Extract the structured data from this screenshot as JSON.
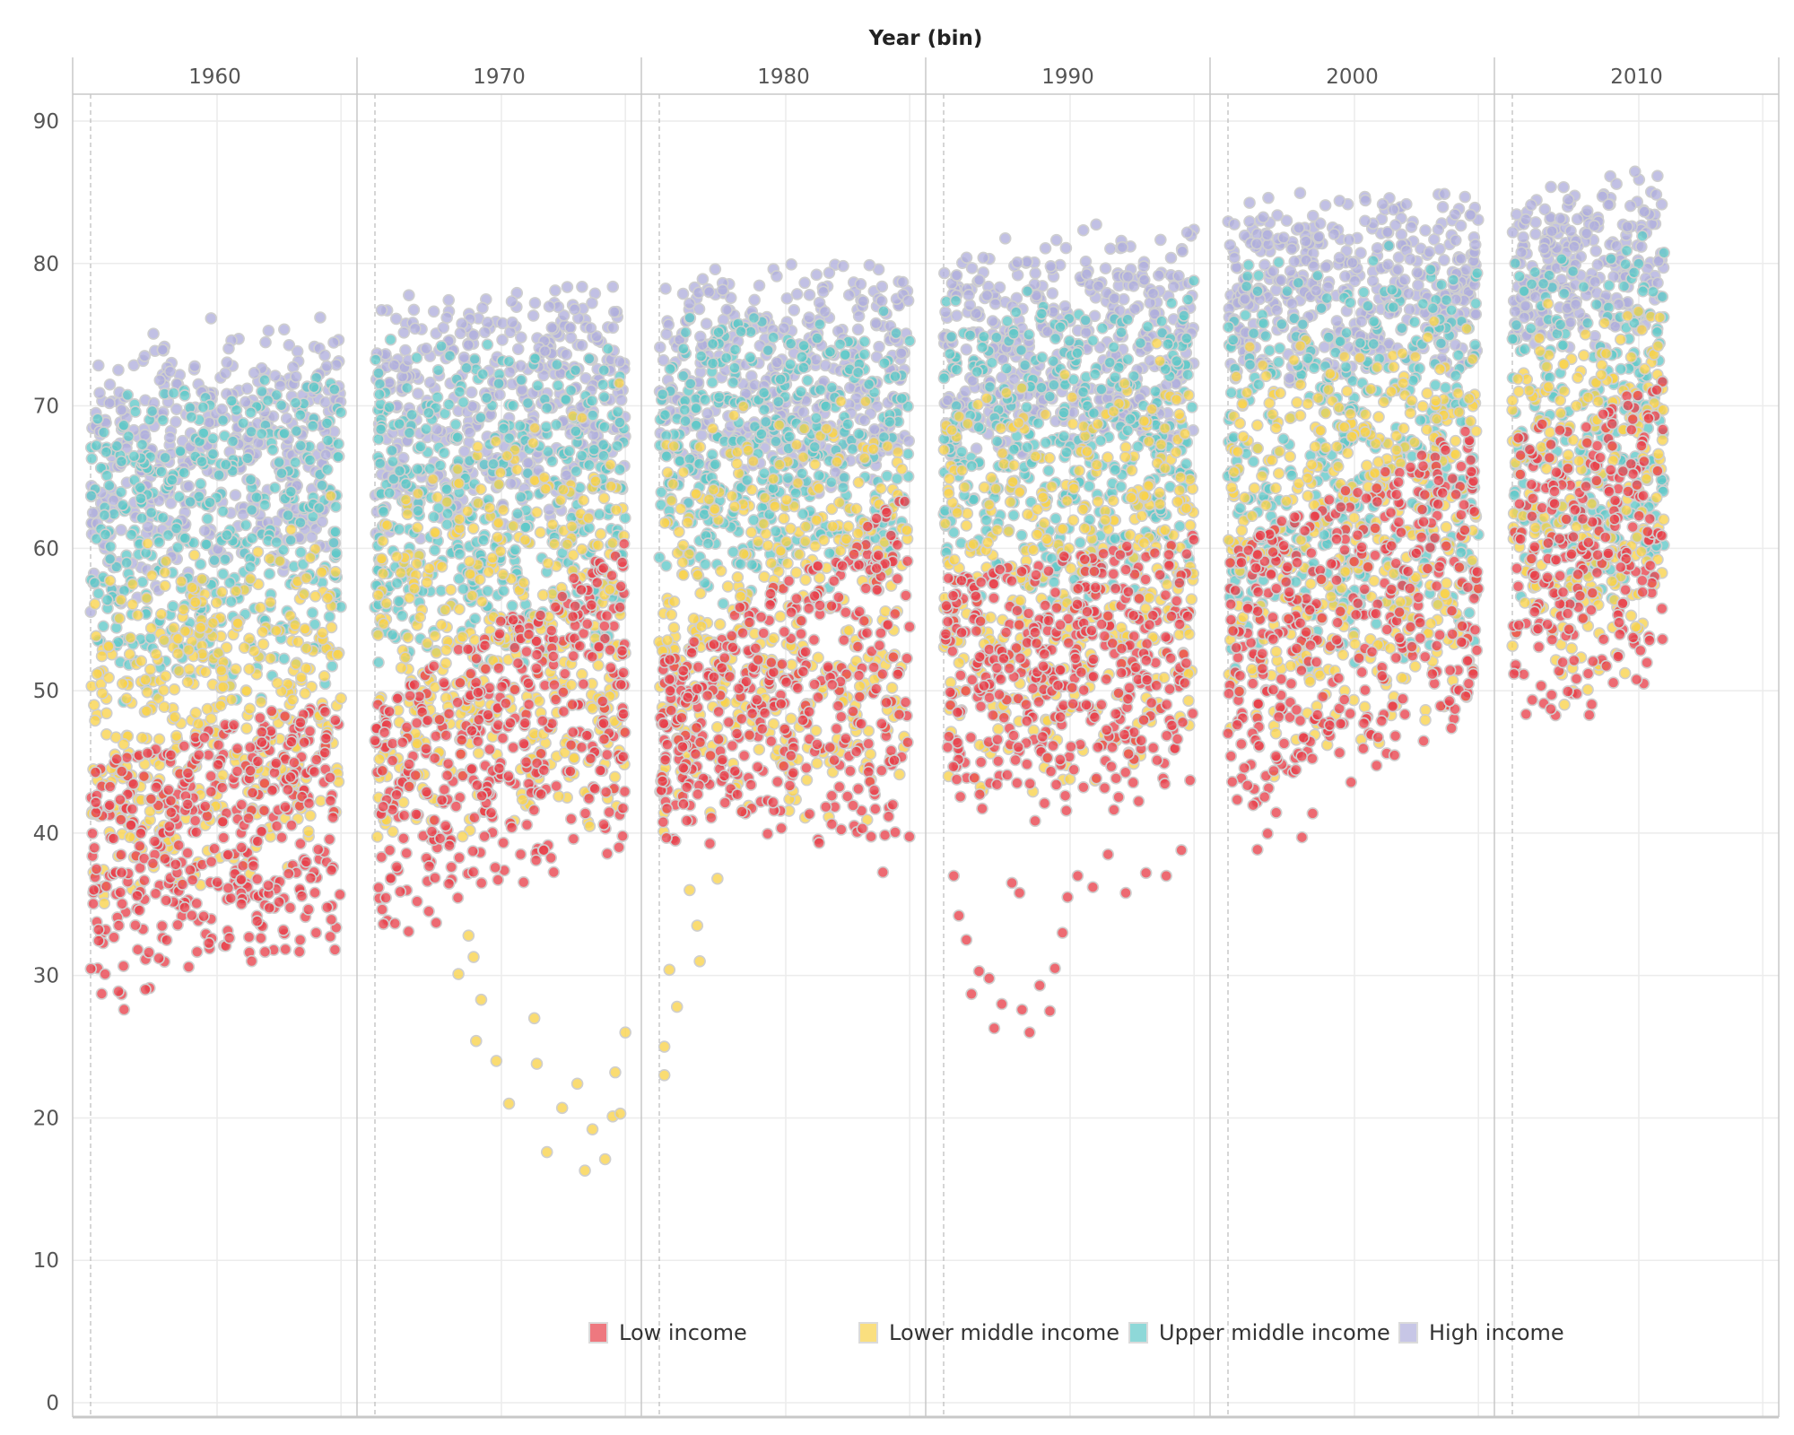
{
  "chart_data": {
    "type": "scatter",
    "title": "Year (bin)",
    "xlabel": "",
    "ylabel": "",
    "ylim": [
      0,
      90
    ],
    "yticks": [
      "0",
      "10",
      "20",
      "30",
      "40",
      "50",
      "60",
      "70",
      "80",
      "90"
    ],
    "grid": true,
    "legend_position": "bottom",
    "panels": [
      {
        "label": "1960",
        "start": 1960,
        "end": 1969.9
      },
      {
        "label": "1970",
        "start": 1970,
        "end": 1979.9
      },
      {
        "label": "1980",
        "start": 1980,
        "end": 1989.9
      },
      {
        "label": "1990",
        "start": 1990,
        "end": 1999.9
      },
      {
        "label": "2000",
        "start": 2000,
        "end": 2009.9
      },
      {
        "label": "2010",
        "start": 2010,
        "end": 2016
      }
    ],
    "series": [
      {
        "name": "Low income",
        "color": "#e8404a",
        "ranges": {
          "1960": {
            "start": [
              27,
              45
            ],
            "end": [
              31,
              50
            ]
          },
          "1970": {
            "start": [
              32,
              49
            ],
            "end": [
              37,
              61
            ]
          },
          "1980": {
            "start": [
              38,
              52
            ],
            "end": [
              37,
              64
            ]
          },
          "1990": {
            "start": [
              40,
              58
            ],
            "end": [
              41,
              61
            ]
          },
          "2000": {
            "start": [
              37,
              60
            ],
            "end": [
              46,
              69
            ]
          },
          "2010": {
            "start": [
              46,
              68
            ],
            "end": [
              49,
              72
            ]
          }
        }
      },
      {
        "name": "Lower middle income",
        "color": "#f8d24a",
        "ranges": {
          "1960": {
            "start": [
              33,
              60
            ],
            "end": [
              37,
              64
            ]
          },
          "1970": {
            "start": [
              38,
              66
            ],
            "end": [
              39,
              72
            ]
          },
          "1980": {
            "start": [
              39,
              69
            ],
            "end": [
              40,
              73
            ]
          },
          "1990": {
            "start": [
              41,
              72
            ],
            "end": [
              43,
              75
            ]
          },
          "2000": {
            "start": [
              43,
              75
            ],
            "end": [
              47,
              78
            ]
          },
          "2010": {
            "start": [
              48,
              78
            ],
            "end": [
              50,
              80
            ]
          }
        }
      },
      {
        "name": "Upper middle income",
        "color": "#5fc8c8",
        "ranges": {
          "1960": {
            "start": [
              47,
              72
            ],
            "end": [
              50,
              74
            ]
          },
          "1970": {
            "start": [
              50,
              75
            ],
            "end": [
              52,
              76
            ]
          },
          "1980": {
            "start": [
              55,
              77
            ],
            "end": [
              56,
              78
            ]
          },
          "1990": {
            "start": [
              55,
              79
            ],
            "end": [
              56,
              80
            ]
          },
          "2000": {
            "start": [
              50,
              81
            ],
            "end": [
              52,
              82
            ]
          },
          "2010": {
            "start": [
              55,
              82
            ],
            "end": [
              56,
              83
            ]
          }
        }
      },
      {
        "name": "High income",
        "color": "#b0aedc",
        "ranges": {
          "1960": {
            "start": [
              55,
              76
            ],
            "end": [
              58,
              77
            ]
          },
          "1970": {
            "start": [
              60,
              78
            ],
            "end": [
              62,
              80
            ]
          },
          "1980": {
            "start": [
              62,
              80
            ],
            "end": [
              64,
              81
            ]
          },
          "1990": {
            "start": [
              65,
              82
            ],
            "end": [
              67,
              84
            ]
          },
          "2000": {
            "start": [
              70,
              85
            ],
            "end": [
              72,
              86
            ]
          },
          "2010": {
            "start": [
              73,
              86
            ],
            "end": [
              74,
              87
            ]
          }
        }
      }
    ],
    "outliers": [
      {
        "series": "Lower middle income",
        "points": [
          [
            1973.7,
            32.8
          ],
          [
            1973.9,
            31.3
          ],
          [
            1973.3,
            30.1
          ],
          [
            1974.2,
            28.3
          ],
          [
            1974.0,
            25.4
          ],
          [
            1974.8,
            24.0
          ],
          [
            1975.3,
            21.0
          ],
          [
            1976.3,
            27.0
          ],
          [
            1976.4,
            23.8
          ],
          [
            1976.8,
            17.6
          ],
          [
            1977.4,
            20.7
          ],
          [
            1978.0,
            22.4
          ],
          [
            1978.3,
            16.3
          ],
          [
            1978.6,
            19.2
          ],
          [
            1979.1,
            17.1
          ],
          [
            1979.4,
            20.1
          ],
          [
            1979.7,
            20.3
          ],
          [
            1979.5,
            23.2
          ],
          [
            1979.9,
            26.0
          ],
          [
            1980.2,
            23.0
          ],
          [
            1980.2,
            25.0
          ],
          [
            1980.4,
            30.4
          ],
          [
            1980.7,
            27.8
          ],
          [
            1981.2,
            36.0
          ],
          [
            1981.5,
            33.5
          ],
          [
            1981.6,
            31.0
          ],
          [
            1982.3,
            36.8
          ]
        ]
      },
      {
        "series": "Low income",
        "points": [
          [
            1990.4,
            37.0
          ],
          [
            1990.6,
            34.2
          ],
          [
            1990.9,
            32.5
          ],
          [
            1991.1,
            28.7
          ],
          [
            1991.4,
            30.3
          ],
          [
            1991.8,
            29.8
          ],
          [
            1992.0,
            26.3
          ],
          [
            1992.3,
            28.0
          ],
          [
            1992.7,
            36.5
          ],
          [
            1993.0,
            35.8
          ],
          [
            1993.1,
            27.6
          ],
          [
            1993.4,
            26.0
          ],
          [
            1993.8,
            29.3
          ],
          [
            1994.2,
            27.5
          ],
          [
            1994.4,
            30.5
          ],
          [
            1994.7,
            33.0
          ],
          [
            1994.9,
            35.5
          ],
          [
            1995.3,
            37.0
          ],
          [
            1995.9,
            36.2
          ],
          [
            1996.5,
            38.5
          ],
          [
            1997.2,
            35.8
          ],
          [
            1998.0,
            37.2
          ],
          [
            1998.8,
            37.0
          ],
          [
            1999.4,
            38.8
          ]
        ]
      }
    ]
  }
}
